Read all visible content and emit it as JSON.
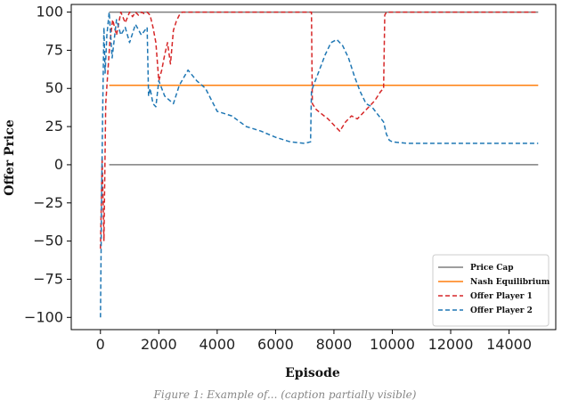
{
  "chart_data": {
    "type": "line",
    "xlabel": "Episode",
    "ylabel": "Offer Price",
    "xlim": [
      -1000,
      15600
    ],
    "ylim": [
      -108,
      105
    ],
    "xticks": [
      0,
      2000,
      4000,
      6000,
      8000,
      10000,
      12000,
      14000
    ],
    "yticks": [
      -100,
      -75,
      -50,
      -25,
      0,
      25,
      50,
      75,
      100
    ],
    "grid": false,
    "legend_position": "bottom-right",
    "series": [
      {
        "name": "Price Cap",
        "style": "solid",
        "color": "#7f7f7f",
        "segments": [
          {
            "x": [
              300,
              15000
            ],
            "y": [
              100,
              100
            ]
          },
          {
            "x": [
              300,
              15000
            ],
            "y": [
              0,
              0
            ]
          }
        ]
      },
      {
        "name": "Nash Equilibrium",
        "style": "solid",
        "color": "#ff7f0e",
        "x": [
          300,
          15000
        ],
        "y": [
          52,
          52
        ]
      },
      {
        "name": "Offer Player 1",
        "style": "dashed",
        "color": "#d62728",
        "x": [
          0,
          60,
          120,
          180,
          250,
          320,
          420,
          550,
          700,
          850,
          1000,
          1100,
          1200,
          1300,
          1400,
          1500,
          1600,
          1700,
          1800,
          1900,
          2000,
          2100,
          2200,
          2300,
          2400,
          2500,
          2600,
          2700,
          2800,
          3000,
          3300,
          3600,
          4000,
          5000,
          6000,
          7000,
          7200,
          7230,
          7260,
          7400,
          7600,
          7800,
          8000,
          8200,
          8400,
          8600,
          8800,
          9000,
          9200,
          9400,
          9600,
          9700,
          9740,
          9800,
          10000,
          12000,
          15000
        ],
        "y": [
          -55,
          5,
          -50,
          40,
          60,
          80,
          95,
          85,
          100,
          93,
          100,
          97,
          100,
          98,
          100,
          99,
          100,
          98,
          90,
          80,
          55,
          62,
          72,
          80,
          66,
          88,
          94,
          98,
          100,
          100,
          100,
          100,
          100,
          100,
          100,
          100,
          100,
          100,
          40,
          36,
          33,
          30,
          26,
          22,
          28,
          32,
          30,
          34,
          38,
          42,
          48,
          50,
          98,
          100,
          100,
          100,
          100
        ]
      },
      {
        "name": "Offer Player 2",
        "style": "dashed",
        "color": "#1f77b4",
        "x": [
          0,
          40,
          80,
          120,
          160,
          220,
          300,
          400,
          550,
          700,
          850,
          1000,
          1200,
          1400,
          1600,
          1650,
          1700,
          1800,
          1900,
          2000,
          2200,
          2500,
          2700,
          3000,
          3300,
          3600,
          4000,
          4500,
          5000,
          5500,
          6000,
          6500,
          7000,
          7200,
          7230,
          7300,
          7500,
          7700,
          7900,
          8100,
          8300,
          8500,
          8700,
          8900,
          9100,
          9300,
          9500,
          9700,
          9800,
          9900,
          10000,
          10500,
          11000,
          12000,
          13000,
          14000,
          15000
        ],
        "y": [
          -100,
          -20,
          40,
          90,
          60,
          85,
          100,
          70,
          95,
          85,
          90,
          80,
          92,
          85,
          90,
          45,
          50,
          40,
          38,
          55,
          45,
          40,
          52,
          62,
          55,
          50,
          35,
          32,
          25,
          22,
          18,
          15,
          14,
          15,
          48,
          52,
          62,
          72,
          80,
          82,
          78,
          70,
          58,
          48,
          40,
          38,
          33,
          28,
          20,
          16,
          15,
          14,
          14,
          14,
          14,
          14,
          14
        ]
      }
    ]
  },
  "legend": [
    {
      "label": "Price Cap",
      "color": "#7f7f7f",
      "style": "solid"
    },
    {
      "label": "Nash Equilibrium",
      "color": "#ff7f0e",
      "style": "solid"
    },
    {
      "label": "Offer Player 1",
      "color": "#d62728",
      "style": "dashed"
    },
    {
      "label": "Offer Player 2",
      "color": "#1f77b4",
      "style": "dashed"
    }
  ],
  "caption": "Figure 1: Example of... (caption partially visible)"
}
